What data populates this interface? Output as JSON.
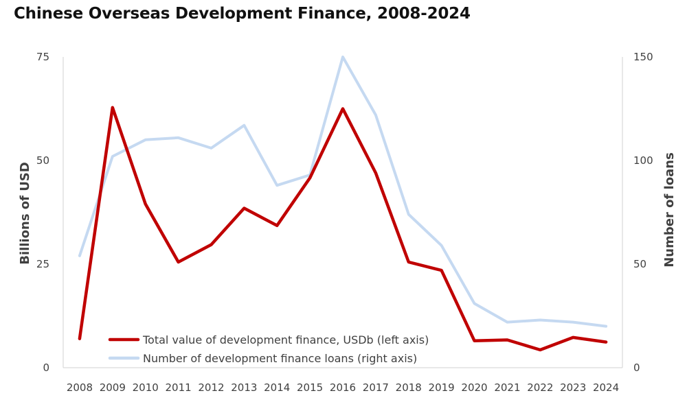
{
  "chart_data": {
    "type": "line",
    "title": "Chinese Overseas Development Finance, 2008-2024",
    "x": [
      "2008",
      "2009",
      "2010",
      "2011",
      "2012",
      "2013",
      "2014",
      "2015",
      "2016",
      "2017",
      "2018",
      "2019",
      "2020",
      "2021",
      "2022",
      "2023",
      "2024"
    ],
    "ylabel": "Billions of USD",
    "ylabel_right": "Number of loans",
    "ylim": [
      0,
      75
    ],
    "yticks": [
      "0",
      "25",
      "50",
      "75"
    ],
    "ylim_right": [
      0,
      150
    ],
    "yticks_right": [
      "0",
      "50",
      "100",
      "150"
    ],
    "grid": false,
    "legend_position": "bottom-left",
    "series": [
      {
        "name": "Total value of development finance, USDb (left axis)",
        "axis": "left",
        "color": "#c00000",
        "values": [
          7.0,
          62.8,
          39.5,
          25.5,
          29.7,
          38.5,
          34.3,
          45.8,
          62.5,
          47.0,
          25.5,
          23.5,
          6.5,
          6.7,
          4.3,
          7.3,
          6.2
        ]
      },
      {
        "name": "Number of development finance loans (right axis)",
        "axis": "right",
        "color": "#c5d9f1",
        "values": [
          54,
          102,
          110,
          111,
          106,
          117,
          88,
          93,
          150,
          122,
          74,
          59,
          31,
          22,
          23,
          22,
          20
        ]
      }
    ]
  }
}
